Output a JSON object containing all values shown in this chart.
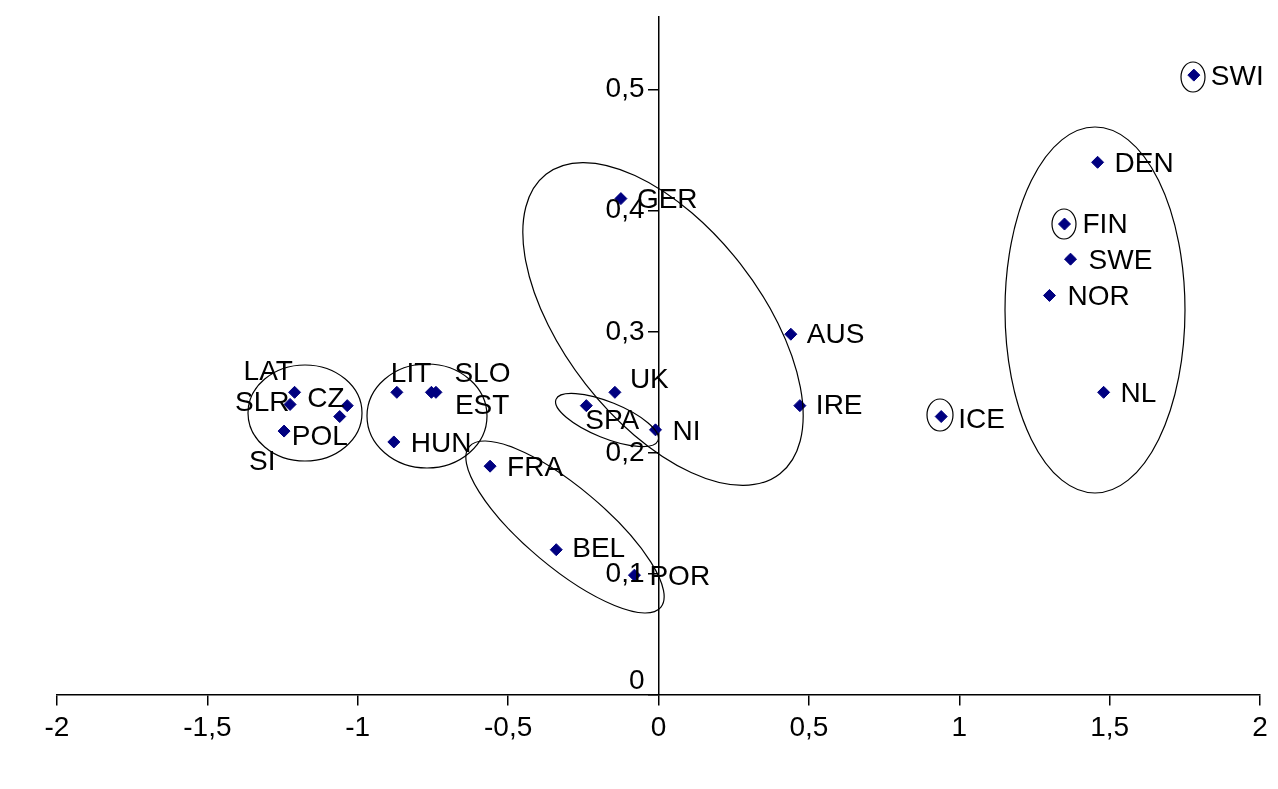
{
  "chart_data": {
    "type": "scatter",
    "marker": "diamond",
    "grid": false,
    "xlim": [
      -2,
      2
    ],
    "ylim": [
      0,
      0.56
    ],
    "xticks": [
      {
        "value": -2,
        "label": "-2"
      },
      {
        "value": -1.5,
        "label": "-1,5"
      },
      {
        "value": -1,
        "label": "-1"
      },
      {
        "value": -0.5,
        "label": "-0,5"
      },
      {
        "value": 0,
        "label": "0"
      },
      {
        "value": 0.5,
        "label": "0,5"
      },
      {
        "value": 1,
        "label": "1"
      },
      {
        "value": 1.5,
        "label": "1,5"
      },
      {
        "value": 2,
        "label": "2"
      }
    ],
    "yticks": [
      {
        "value": 0,
        "label": "0"
      },
      {
        "value": 0.1,
        "label": "0,1"
      },
      {
        "value": 0.2,
        "label": "0,2"
      },
      {
        "value": 0.3,
        "label": "0,3"
      },
      {
        "value": 0.4,
        "label": "0,4"
      },
      {
        "value": 0.5,
        "label": "0,5"
      }
    ],
    "series": [
      {
        "color": "#000080",
        "x": [
          1.78,
          1.46,
          1.35,
          1.37,
          1.3,
          1.48,
          0.94,
          0.44,
          0.47,
          -0.125,
          -0.145,
          -0.24,
          -0.01,
          -0.56,
          -0.34,
          -0.08,
          -1.21,
          -1.225,
          -1.035,
          -1.06,
          -1.245,
          -0.87,
          -0.755,
          -0.74,
          -0.88
        ],
        "values": [
          0.512,
          0.44,
          0.389,
          0.36,
          0.33,
          0.25,
          0.23,
          0.298,
          0.239,
          0.41,
          0.25,
          0.239,
          0.219,
          0.189,
          0.12,
          0.099,
          0.25,
          0.24,
          0.239,
          0.23,
          0.218,
          0.25,
          0.25,
          0.25,
          0.209
        ],
        "value_labels": [
          "SWI",
          "DEN",
          "FIN",
          "SWE",
          "NOR",
          "NL",
          "ICE",
          "AUS",
          "IRE",
          "GER",
          "UK",
          "SPA",
          "NI",
          "FRA",
          "BEL",
          "POR",
          "LAT",
          "SLR",
          "CZ",
          "POL",
          "SI",
          "LIT",
          "SLO",
          "EST",
          "HUN"
        ]
      }
    ]
  }
}
